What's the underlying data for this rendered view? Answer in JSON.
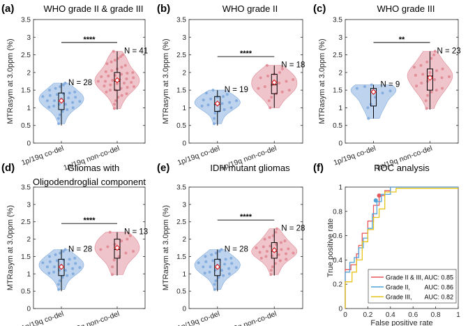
{
  "chart_data": [
    {
      "type": "violin",
      "panel_letter": "(a)",
      "title": "WHO grade II & grade III",
      "ylabel": "MTRasym at 3.0ppm (%)",
      "ylim": [
        0,
        3.5
      ],
      "yticks": [
        "0",
        "0.5",
        "1",
        "1.5",
        "2",
        "2.5",
        "3",
        "3.5"
      ],
      "significance": "****",
      "groups": [
        {
          "label": "1p/19q co-del",
          "n_label": "N = 28",
          "color": "#7ea9dd",
          "mean": 1.2,
          "median": 1.2,
          "q1": 0.95,
          "q3": 1.42,
          "whisker_low": 0.5,
          "whisker_high": 1.7,
          "points": [
            0.55,
            0.7,
            0.8,
            0.9,
            0.95,
            1.0,
            1.02,
            1.05,
            1.1,
            1.1,
            1.15,
            1.18,
            1.2,
            1.2,
            1.25,
            1.28,
            1.3,
            1.32,
            1.35,
            1.38,
            1.4,
            1.42,
            1.45,
            1.5,
            1.55,
            1.6,
            1.65,
            1.7
          ]
        },
        {
          "label": "1p/19q non-co-del",
          "n_label": "N = 41",
          "color": "#e08a95",
          "mean": 1.78,
          "median": 1.75,
          "q1": 1.5,
          "q3": 2.0,
          "whisker_low": 0.95,
          "whisker_high": 2.6,
          "points": [
            0.98,
            1.1,
            1.2,
            1.3,
            1.35,
            1.4,
            1.45,
            1.5,
            1.5,
            1.55,
            1.58,
            1.6,
            1.62,
            1.65,
            1.68,
            1.7,
            1.72,
            1.75,
            1.75,
            1.78,
            1.8,
            1.82,
            1.85,
            1.88,
            1.9,
            1.92,
            1.95,
            1.98,
            2.0,
            2.02,
            2.05,
            2.1,
            2.15,
            2.2,
            2.25,
            2.3,
            2.35,
            2.4,
            2.45,
            2.5,
            2.6
          ]
        }
      ]
    },
    {
      "type": "violin",
      "panel_letter": "(b)",
      "title": "WHO grade II",
      "ylabel": "MTRasym at 3.0ppm (%)",
      "ylim": [
        0,
        3.5
      ],
      "yticks": [
        "0",
        "0.5",
        "1",
        "1.5",
        "2",
        "2.5",
        "3",
        "3.5"
      ],
      "significance": "****",
      "groups": [
        {
          "label": "1p/19q co-del",
          "n_label": "N = 19",
          "color": "#7ea9dd",
          "mean": 1.12,
          "median": 1.1,
          "q1": 0.9,
          "q3": 1.32,
          "whisker_low": 0.5,
          "whisker_high": 1.5,
          "points": [
            0.55,
            0.7,
            0.85,
            0.9,
            0.95,
            1.0,
            1.05,
            1.08,
            1.1,
            1.12,
            1.15,
            1.2,
            1.22,
            1.25,
            1.3,
            1.32,
            1.38,
            1.42,
            1.5
          ]
        },
        {
          "label": "1p/19q non-co-del",
          "n_label": "N = 18",
          "color": "#e08a95",
          "mean": 1.72,
          "median": 1.65,
          "q1": 1.4,
          "q3": 1.95,
          "whisker_low": 1.0,
          "whisker_high": 2.2,
          "points": [
            1.0,
            1.2,
            1.3,
            1.4,
            1.45,
            1.5,
            1.55,
            1.6,
            1.65,
            1.7,
            1.75,
            1.8,
            1.85,
            1.9,
            1.95,
            2.0,
            2.1,
            2.2
          ]
        }
      ]
    },
    {
      "type": "violin",
      "panel_letter": "(c)",
      "title": "WHO grade III",
      "ylabel": "MTRasym at 3.0ppm (%)",
      "ylim": [
        0,
        3.5
      ],
      "yticks": [
        "0",
        "0.5",
        "1",
        "1.5",
        "2",
        "2.5",
        "3",
        "3.5"
      ],
      "significance": "**",
      "groups": [
        {
          "label": "1p/19q co-del",
          "n_label": "N = 9",
          "color": "#7ea9dd",
          "mean": 1.45,
          "median": 1.45,
          "q1": 1.05,
          "q3": 1.55,
          "whisker_low": 0.7,
          "whisker_high": 1.65,
          "points": [
            0.7,
            1.0,
            1.1,
            1.3,
            1.42,
            1.48,
            1.55,
            1.6,
            1.65
          ]
        },
        {
          "label": "1p/19q non-co-del",
          "n_label": "N = 23",
          "color": "#e08a95",
          "mean": 1.85,
          "median": 1.9,
          "q1": 1.5,
          "q3": 2.1,
          "whisker_low": 0.95,
          "whisker_high": 2.6,
          "points": [
            0.98,
            1.2,
            1.35,
            1.45,
            1.5,
            1.55,
            1.62,
            1.7,
            1.75,
            1.8,
            1.85,
            1.88,
            1.92,
            1.95,
            2.0,
            2.05,
            2.1,
            2.15,
            2.2,
            2.3,
            2.4,
            2.5,
            2.6
          ]
        }
      ]
    },
    {
      "type": "violin",
      "panel_letter": "(d)",
      "title": "Gliomas with",
      "title_line2": "Oligodendroglial component",
      "ylabel": "MTRasym at 3.0ppm (%)",
      "ylim": [
        0,
        3.5
      ],
      "yticks": [
        "0",
        "0.5",
        "1",
        "1.5",
        "2",
        "2.5",
        "3",
        "3.5"
      ],
      "significance": "****",
      "groups": [
        {
          "label": "1p/19q co-del",
          "n_label": "N = 28",
          "color": "#7ea9dd",
          "mean": 1.2,
          "median": 1.2,
          "q1": 0.95,
          "q3": 1.42,
          "whisker_low": 0.5,
          "whisker_high": 1.7,
          "points": [
            0.55,
            0.7,
            0.8,
            0.9,
            0.95,
            1.0,
            1.02,
            1.05,
            1.1,
            1.1,
            1.15,
            1.18,
            1.2,
            1.2,
            1.25,
            1.28,
            1.3,
            1.32,
            1.35,
            1.38,
            1.4,
            1.42,
            1.45,
            1.5,
            1.55,
            1.6,
            1.65,
            1.7
          ]
        },
        {
          "label": "1p/19q non-co-del",
          "n_label": "N = 13",
          "color": "#e08a95",
          "mean": 1.75,
          "median": 1.7,
          "q1": 1.45,
          "q3": 2.0,
          "whisker_low": 0.95,
          "whisker_high": 2.2,
          "points": [
            0.98,
            1.2,
            1.4,
            1.5,
            1.6,
            1.65,
            1.7,
            1.78,
            1.85,
            1.95,
            2.0,
            2.1,
            2.2
          ]
        }
      ]
    },
    {
      "type": "violin",
      "panel_letter": "(e)",
      "title": "IDH mutant gliomas",
      "ylabel": "MTRasym at 3.0ppm (%)",
      "ylim": [
        0,
        3.5
      ],
      "yticks": [
        "0",
        "0.5",
        "1",
        "1.5",
        "2",
        "2.5",
        "3",
        "3.5"
      ],
      "significance": "****",
      "groups": [
        {
          "label": "1p/19q co-del",
          "n_label": "N = 28",
          "color": "#7ea9dd",
          "mean": 1.2,
          "median": 1.2,
          "q1": 0.95,
          "q3": 1.42,
          "whisker_low": 0.5,
          "whisker_high": 1.7,
          "points": [
            0.55,
            0.7,
            0.8,
            0.9,
            0.95,
            1.0,
            1.02,
            1.05,
            1.1,
            1.1,
            1.15,
            1.18,
            1.2,
            1.2,
            1.25,
            1.28,
            1.3,
            1.32,
            1.35,
            1.38,
            1.4,
            1.42,
            1.45,
            1.5,
            1.55,
            1.6,
            1.65,
            1.7
          ]
        },
        {
          "label": "1p/19q non-co-del",
          "n_label": "N = 28",
          "color": "#e08a95",
          "mean": 1.68,
          "median": 1.65,
          "q1": 1.45,
          "q3": 1.9,
          "whisker_low": 0.95,
          "whisker_high": 2.3,
          "points": [
            0.98,
            1.1,
            1.2,
            1.3,
            1.38,
            1.42,
            1.45,
            1.5,
            1.52,
            1.55,
            1.58,
            1.6,
            1.62,
            1.65,
            1.68,
            1.7,
            1.72,
            1.75,
            1.78,
            1.8,
            1.85,
            1.9,
            1.95,
            2.0,
            2.05,
            2.1,
            2.2,
            2.3
          ]
        }
      ]
    },
    {
      "type": "line",
      "panel_letter": "(f)",
      "title": "ROC analysis",
      "xlabel": "False positive rate",
      "ylabel": "True positive rate",
      "xlim": [
        0,
        1
      ],
      "ylim": [
        0,
        1
      ],
      "xticks": [
        "0",
        "0.2",
        "0.4",
        "0.6",
        "0.8",
        "1"
      ],
      "yticks": [
        "0",
        "0.2",
        "0.4",
        "0.6",
        "0.8",
        "1"
      ],
      "series": [
        {
          "name": "Grade II & III,",
          "auc_label": "AUC: 0.85",
          "color": "#e8555a",
          "x": [
            0,
            0,
            0.05,
            0.05,
            0.1,
            0.1,
            0.12,
            0.12,
            0.15,
            0.15,
            0.2,
            0.2,
            0.25,
            0.25,
            0.3,
            0.3,
            0.35,
            0.35,
            0.4,
            0.4,
            1
          ],
          "y": [
            0,
            0.32,
            0.32,
            0.36,
            0.36,
            0.45,
            0.45,
            0.52,
            0.52,
            0.62,
            0.62,
            0.72,
            0.72,
            0.85,
            0.85,
            0.93,
            0.93,
            0.97,
            0.97,
            1,
            1
          ],
          "marker": [
            0.3,
            0.93
          ]
        },
        {
          "name": "Grade II,",
          "auc_label": "AUC: 0.86",
          "color": "#4fa3d8",
          "x": [
            0,
            0,
            0.04,
            0.04,
            0.08,
            0.08,
            0.12,
            0.12,
            0.16,
            0.16,
            0.2,
            0.2,
            0.24,
            0.24,
            0.28,
            0.28,
            0.32,
            0.32,
            0.4,
            0.4,
            1
          ],
          "y": [
            0,
            0.3,
            0.3,
            0.38,
            0.38,
            0.42,
            0.42,
            0.5,
            0.5,
            0.58,
            0.58,
            0.66,
            0.66,
            0.78,
            0.78,
            0.88,
            0.88,
            0.94,
            0.94,
            1,
            1
          ],
          "marker": [
            0.27,
            0.89
          ]
        },
        {
          "name": "Grade III,",
          "auc_label": "AUC: 0.82",
          "color": "#e7c419",
          "x": [
            0,
            0,
            0.06,
            0.06,
            0.1,
            0.1,
            0.15,
            0.15,
            0.2,
            0.2,
            0.25,
            0.25,
            0.3,
            0.3,
            0.35,
            0.35,
            0.45,
            0.45,
            1
          ],
          "y": [
            0,
            0.22,
            0.22,
            0.3,
            0.3,
            0.4,
            0.4,
            0.55,
            0.55,
            0.65,
            0.65,
            0.75,
            0.75,
            0.82,
            0.82,
            0.96,
            0.96,
            0.99,
            0.99
          ]
        }
      ]
    }
  ]
}
